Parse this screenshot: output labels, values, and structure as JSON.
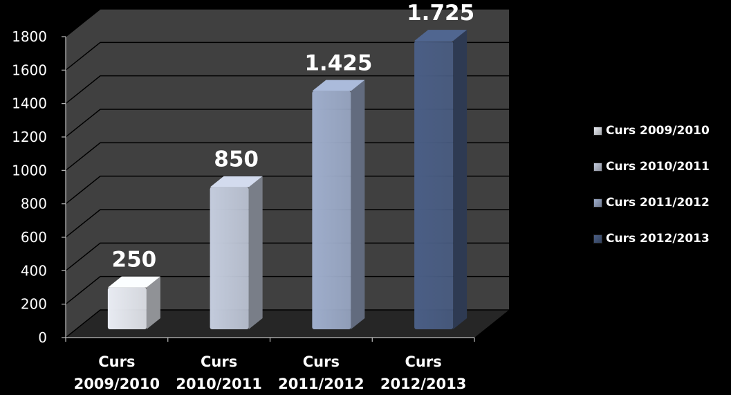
{
  "chart_data": {
    "type": "bar",
    "categories": [
      "Curs 2009/2010",
      "Curs 2010/2011",
      "Curs 2011/2012",
      "Curs 2012/2013"
    ],
    "category_labels": [
      [
        "Curs",
        "2009/2010"
      ],
      [
        "Curs",
        "2010/2011"
      ],
      [
        "Curs",
        "2011/2012"
      ],
      [
        "Curs",
        "2012/2013"
      ]
    ],
    "values": [
      250,
      850,
      1425,
      1725
    ],
    "data_labels": [
      "250",
      "850",
      "1.425",
      "1.725"
    ],
    "ylim": [
      0,
      1800
    ],
    "yticks": [
      0,
      200,
      400,
      600,
      800,
      1000,
      1200,
      1400,
      1600,
      1800
    ],
    "grid": true,
    "three_d": true,
    "legend": {
      "position": "right",
      "entries": [
        "Curs 2009/2010",
        "Curs 2010/2011",
        "Curs 2011/2012",
        "Curs 2012/2013"
      ]
    },
    "colors": {
      "series": [
        "#e8ebf2",
        "#c3cbdc",
        "#9eadcb",
        "#4a5e85"
      ],
      "wall": "#404040",
      "floor": "#262626",
      "grid": "#000000",
      "text": "#ffffff",
      "background": "#000000"
    }
  }
}
